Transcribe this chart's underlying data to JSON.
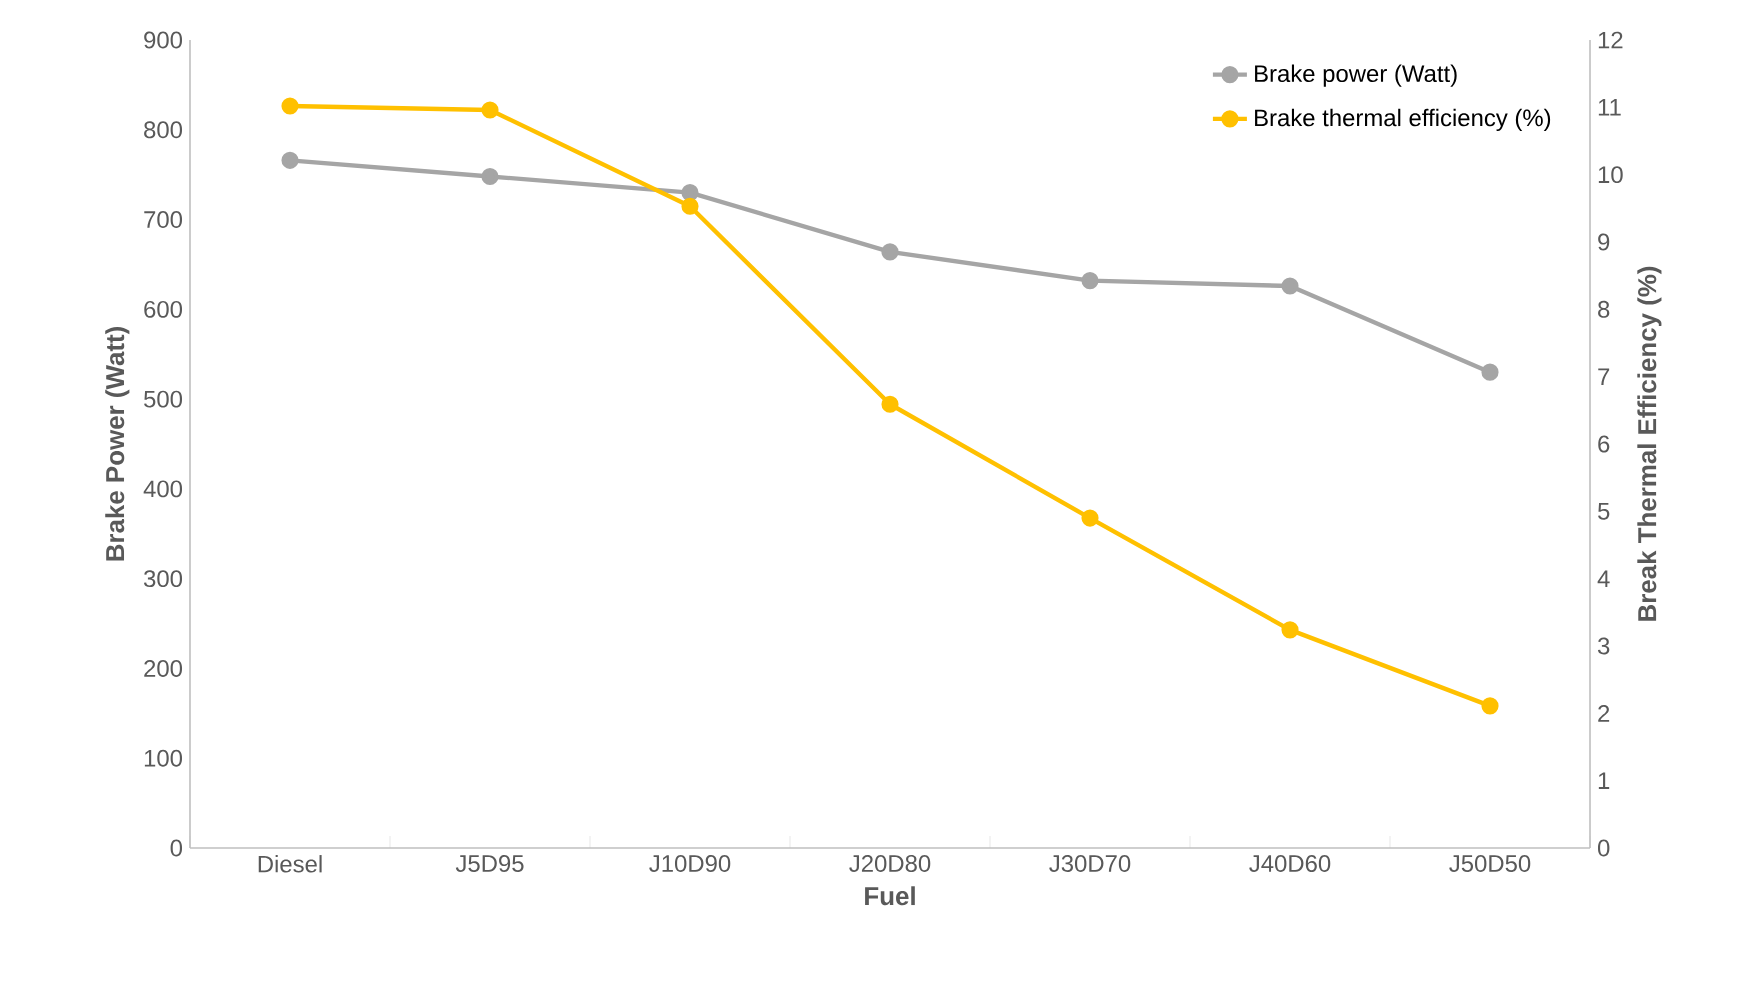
{
  "chart_data": {
    "type": "line",
    "xlabel": "Fuel",
    "ylabel": "Brake Power (Watt)",
    "y2label": "Break Thermal Efficiency (%)",
    "categories": [
      "Diesel",
      "J5D95",
      "J10D90",
      "J20D80",
      "J30D70",
      "J40D60",
      "J50D50"
    ],
    "series": [
      {
        "name": "Brake power (Watt)",
        "color": "#a5a5a5",
        "values": [
          766,
          748,
          730,
          664,
          632,
          626,
          530
        ]
      },
      {
        "name": "Brake thermal efficiency (%)",
        "color": "#ffc000",
        "axis": "y2",
        "values": [
          11.02,
          10.96,
          9.53,
          6.59,
          4.9,
          3.24,
          2.11
        ]
      }
    ],
    "ylim": [
      0,
      900
    ],
    "yticks": [
      0,
      100,
      200,
      300,
      400,
      500,
      600,
      700,
      800,
      900
    ],
    "y2lim": [
      0,
      12
    ],
    "y2ticks": [
      0,
      1,
      2,
      3,
      4,
      5,
      6,
      7,
      8,
      9,
      10,
      11,
      12
    ],
    "legend": "top right",
    "grid": false,
    "marker": "circle",
    "line_style": "solid"
  }
}
